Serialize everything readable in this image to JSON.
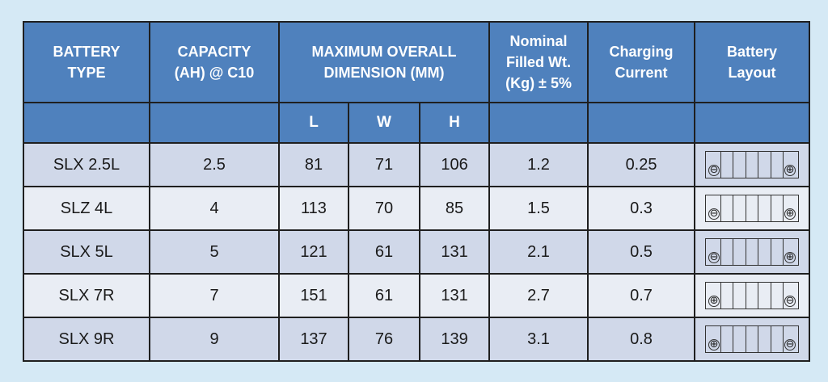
{
  "header": {
    "battery_type": "BATTERY TYPE",
    "capacity": "CAPACITY (AH) @ C10",
    "dimension": "MAXIMUM OVERALL DIMENSION (MM)",
    "weight": "Nominal Filled Wt. (Kg) ± 5%",
    "charging": "Charging Current",
    "layout": "Battery Layout",
    "l": "L",
    "w": "W",
    "h": "H"
  },
  "rows": [
    {
      "type": "SLX 2.5L",
      "capacity": "2.5",
      "l": "81",
      "w": "71",
      "h": "106",
      "weight": "1.2",
      "current": "0.25",
      "left_terminal": "⊖",
      "right_terminal": "⊕"
    },
    {
      "type": "SLZ 4L",
      "capacity": "4",
      "l": "113",
      "w": "70",
      "h": "85",
      "weight": "1.5",
      "current": "0.3",
      "left_terminal": "⊖",
      "right_terminal": "⊕"
    },
    {
      "type": "SLX 5L",
      "capacity": "5",
      "l": "121",
      "w": "61",
      "h": "131",
      "weight": "2.1",
      "current": "0.5",
      "left_terminal": "⊖",
      "right_terminal": "⊕"
    },
    {
      "type": "SLX 7R",
      "capacity": "7",
      "l": "151",
      "w": "61",
      "h": "131",
      "weight": "2.7",
      "current": "0.7",
      "left_terminal": "⊕",
      "right_terminal": "⊖"
    },
    {
      "type": "SLX 9R",
      "capacity": "9",
      "l": "137",
      "w": "76",
      "h": "139",
      "weight": "3.1",
      "current": "0.8",
      "left_terminal": "⊕",
      "right_terminal": "⊖"
    }
  ],
  "colors": {
    "header_bg": "#4f81bd",
    "row_dark": "#d0d8e9",
    "row_light": "#e9edf4",
    "page_bg": "#d5e9f5"
  },
  "icons": {
    "layout": "battery-layout-icon",
    "negative": "minus-terminal-icon",
    "positive": "plus-terminal-icon"
  }
}
